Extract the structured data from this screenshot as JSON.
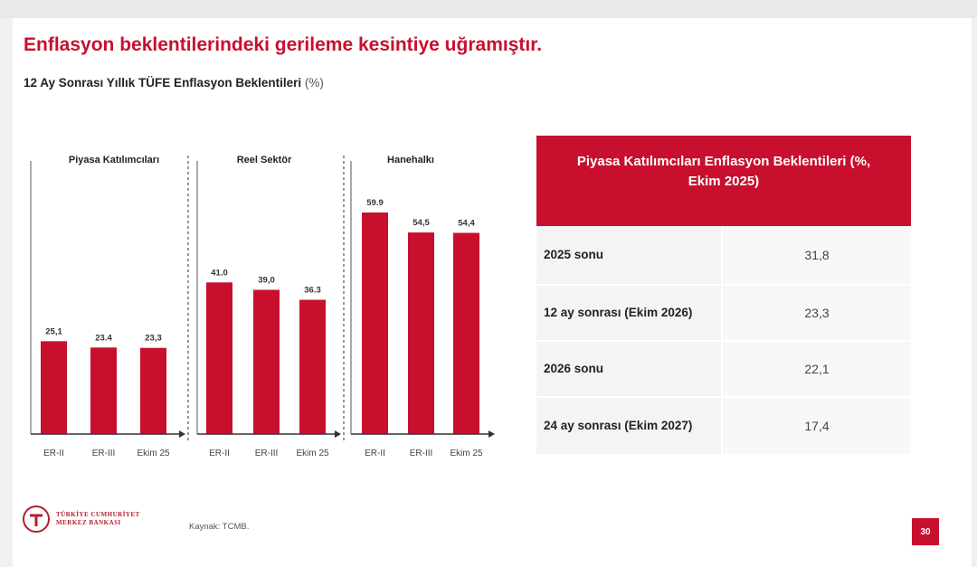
{
  "title": "Enflasyon beklentilerindeki gerileme kesintiye uğramıştır.",
  "subtitle": "12 Ay Sonrası Yıllık TÜFE Enflasyon Beklentileri",
  "subtitle_unit": "(%)",
  "chart_data": [
    {
      "type": "bar",
      "title": "Piyasa Katılımcıları",
      "categories": [
        "ER-II",
        "ER-III",
        "Ekim 25"
      ],
      "values": [
        25.1,
        23.4,
        23.3
      ],
      "value_labels": [
        "25,1",
        "23.4",
        "23,3"
      ],
      "color": "#c8102e"
    },
    {
      "type": "bar",
      "title": "Reel Sektör",
      "categories": [
        "ER-II",
        "ER-III",
        "Ekim 25"
      ],
      "values": [
        41.0,
        39.0,
        36.3
      ],
      "value_labels": [
        "41.0",
        "39,0",
        "36.3"
      ],
      "color": "#c8102e"
    },
    {
      "type": "bar",
      "title": "Hanehalkı",
      "categories": [
        "ER-II",
        "ER-III",
        "Ekim 25"
      ],
      "values": [
        59.9,
        54.5,
        54.4
      ],
      "value_labels": [
        "59.9",
        "54,5",
        "54,4"
      ],
      "color": "#c8102e"
    }
  ],
  "table": {
    "header": "Piyasa Katılımcıları Enflasyon Beklentileri (%, Ekim 2025)",
    "rows": [
      {
        "label": "2025 sonu",
        "value": "31,8"
      },
      {
        "label": "12 ay sonrası (Ekim 2026)",
        "value": "23,3"
      },
      {
        "label": "2026 sonu",
        "value": "22,1"
      },
      {
        "label": "24 ay sonrası (Ekim 2027)",
        "value": "17,4"
      }
    ]
  },
  "footer": {
    "logo_line1": "TÜRKİYE CUMHURİYET",
    "logo_line2": "MERKEZ BANKASI",
    "logo_initials": "TCMB",
    "source": "Kaynak: TCMB.",
    "page_number": "30"
  },
  "colors": {
    "accent": "#c8102e"
  }
}
